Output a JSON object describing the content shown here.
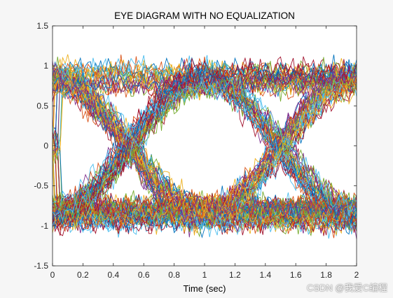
{
  "chart_data": {
    "type": "line",
    "title": "EYE DIAGRAM WITH NO EQUALIZATION",
    "xlabel": "Time (sec)",
    "ylabel": "",
    "xlim": [
      0,
      2
    ],
    "ylim": [
      -1.5,
      1.5
    ],
    "x_ticks": [
      0,
      0.2,
      0.4,
      0.6,
      0.8,
      1,
      1.2,
      1.4,
      1.6,
      1.8,
      2
    ],
    "x_tick_labels": [
      "0",
      "0.2",
      "0.4",
      "0.6",
      "0.8",
      "1",
      "1.2",
      "1.4",
      "1.6",
      "1.8",
      "2"
    ],
    "y_ticks": [
      -1.5,
      -1,
      -0.5,
      0,
      0.5,
      1,
      1.5
    ],
    "y_tick_labels": [
      "-1.5",
      "-1",
      "-0.5",
      "0",
      "0.5",
      "1",
      "1.5"
    ],
    "grid": false,
    "legend": "none",
    "trace_count": 160,
    "symbol_levels": [
      -1,
      1
    ],
    "symbol_time": 1,
    "noise_level": 0.12,
    "colors": [
      "#0072bd",
      "#d95319",
      "#edb120",
      "#7e2f8e",
      "#77ac30",
      "#4dbeee",
      "#a2142f"
    ]
  },
  "watermark": "CSDN @我爱C编程"
}
